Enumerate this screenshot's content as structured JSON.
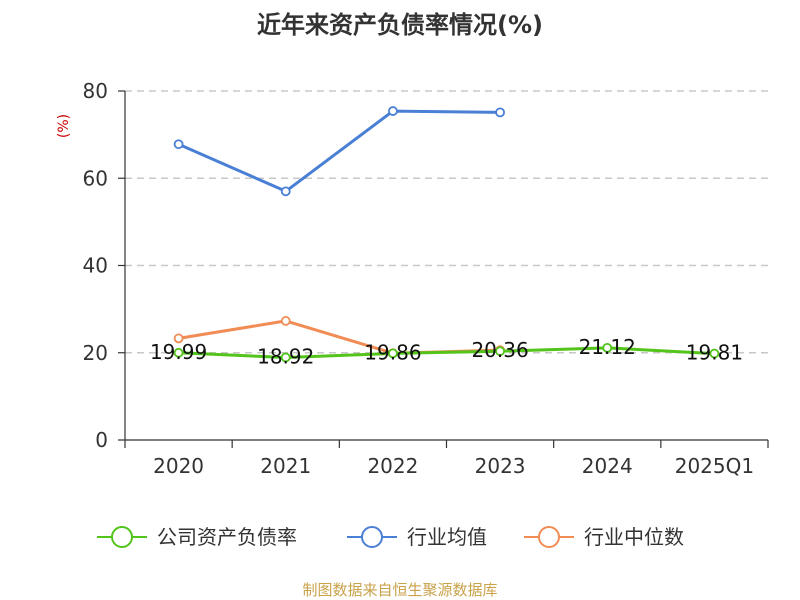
{
  "chart_data": {
    "type": "line",
    "title": "近年来资产负债率情况(%)",
    "ylabel": "(%)",
    "xlabel": "",
    "categories": [
      "2020",
      "2021",
      "2022",
      "2023",
      "2024",
      "2025Q1"
    ],
    "ylim": [
      0,
      80
    ],
    "yticks": [
      0,
      20,
      40,
      60,
      80
    ],
    "grid": true,
    "legend_position": "bottom",
    "series": [
      {
        "name": "公司资产负债率",
        "color": "#52c41a",
        "values": [
          19.99,
          18.92,
          19.86,
          20.36,
          21.12,
          19.81
        ],
        "labels": [
          "19.99",
          "18.92",
          "19.86",
          "20.36",
          "21.12",
          "19.81"
        ]
      },
      {
        "name": "行业均值",
        "color": "#4a7fd6",
        "values": [
          67.8,
          57.0,
          75.4,
          75.1,
          null,
          null
        ]
      },
      {
        "name": "行业中位数",
        "color": "#f28c55",
        "values": [
          23.3,
          27.3,
          19.9,
          20.6,
          null,
          null
        ]
      }
    ],
    "source": "制图数据来自恒生聚源数据库"
  }
}
